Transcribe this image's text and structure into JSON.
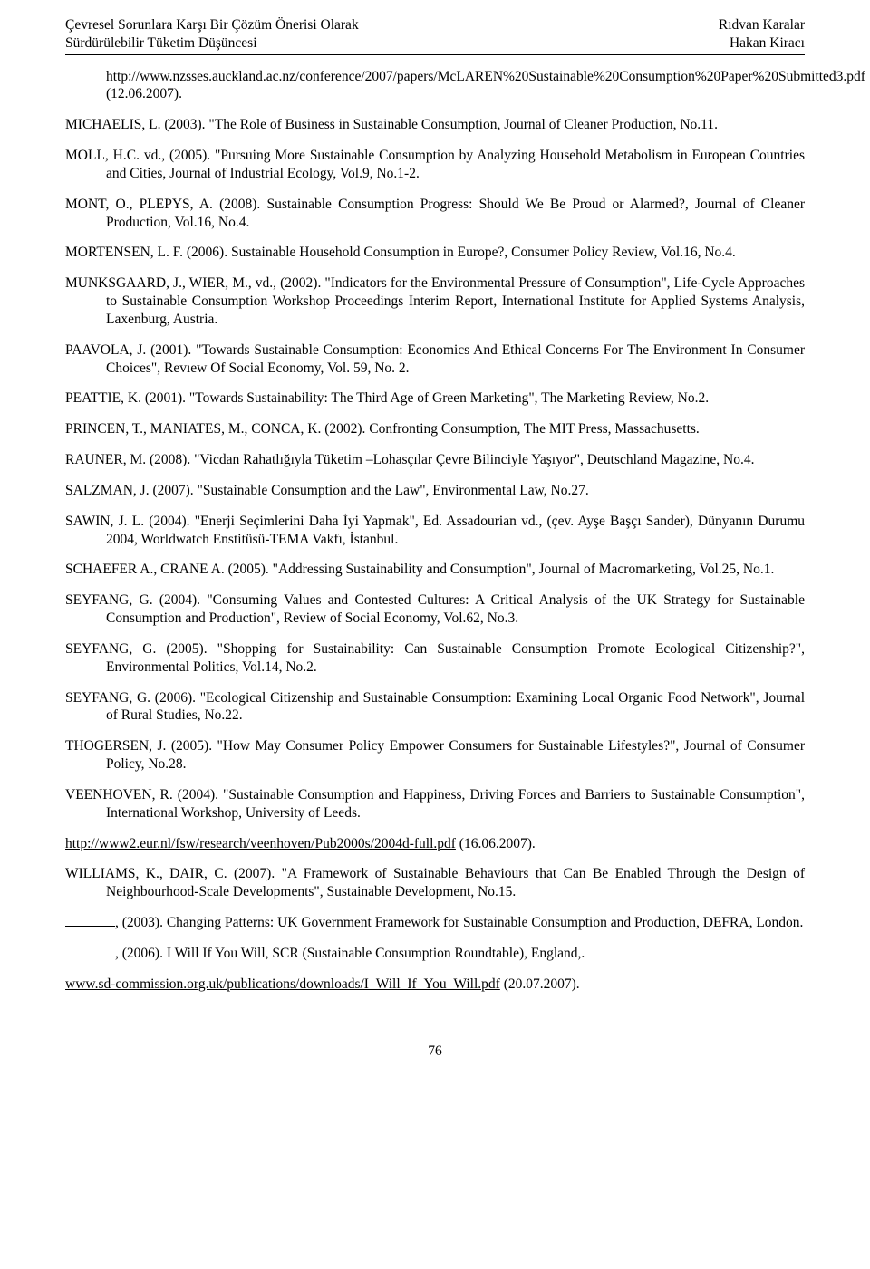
{
  "header": {
    "left": "Çevresel Sorunlara Karşı Bir Çözüm Önerisi Olarak\nSürdürülebilir Tüketim Düşüncesi",
    "right": "Rıdvan Karalar\nHakan Kiracı"
  },
  "refs": [
    {
      "type": "continue",
      "pre_link": "",
      "link": "http://www.nzsses.auckland.ac.nz/conference/2007/papers/McLAREN%20Sustainable%20Consumption%20Paper%20Submitted3.pdf",
      "post_link": " (12.06.2007)."
    },
    {
      "type": "ref",
      "text": "MICHAELIS, L. (2003). \"The Role of Business in Sustainable Consumption, Journal of Cleaner Production, No.11."
    },
    {
      "type": "ref",
      "text": "MOLL, H.C. vd., (2005). \"Pursuing More Sustainable Consumption by Analyzing Household Metabolism in European Countries and Cities, Journal of Industrial Ecology, Vol.9, No.1-2."
    },
    {
      "type": "ref",
      "text": "MONT, O., PLEPYS, A. (2008). Sustainable Consumption Progress: Should We Be Proud or Alarmed?, Journal of Cleaner Production, Vol.16, No.4."
    },
    {
      "type": "ref",
      "text": "MORTENSEN, L. F. (2006). Sustainable Household Consumption in Europe?, Consumer Policy Review, Vol.16, No.4."
    },
    {
      "type": "ref",
      "text": "MUNKSGAARD, J., WIER, M., vd., (2002). \"Indicators for the Environmental Pressure of Consumption\", Life-Cycle Approaches to Sustainable Consumption Workshop Proceedings Interim Report, International Institute for Applied Systems Analysis, Laxenburg, Austria."
    },
    {
      "type": "ref",
      "text": "PAAVOLA, J. (2001). \"Towards Sustainable Consumption: Economics And Ethical Concerns For The Environment In Consumer Choices\", Revıew Of Social Economy, Vol. 59, No. 2."
    },
    {
      "type": "ref",
      "text": "PEATTIE, K. (2001). \"Towards Sustainability: The Third Age of Green Marketing\", The Marketing Review, No.2."
    },
    {
      "type": "ref",
      "text": "PRINCEN, T., MANIATES, M., CONCA, K. (2002). Confronting Consumption, The MIT Press, Massachusetts."
    },
    {
      "type": "ref",
      "text": "RAUNER, M. (2008). \"Vicdan Rahatlığıyla Tüketim –Lohasçılar Çevre Bilinciyle Yaşıyor\", Deutschland Magazine, No.4."
    },
    {
      "type": "ref",
      "text": "SALZMAN, J. (2007). \"Sustainable Consumption and the Law\", Environmental Law, No.27."
    },
    {
      "type": "ref",
      "text": "SAWIN, J. L. (2004). \"Enerji Seçimlerini Daha İyi Yapmak\", Ed. Assadourian vd., (çev. Ayşe Başçı Sander), Dünyanın Durumu 2004, Worldwatch Enstitüsü-TEMA Vakfı, İstanbul."
    },
    {
      "type": "ref",
      "text": "SCHAEFER A., CRANE A. (2005). \"Addressing Sustainability and Consumption\", Journal of Macromarketing, Vol.25, No.1."
    },
    {
      "type": "ref",
      "text": "SEYFANG, G. (2004). \"Consuming Values and Contested Cultures: A Critical Analysis of the UK Strategy for Sustainable Consumption and Production\", Review of Social Economy, Vol.62, No.3."
    },
    {
      "type": "ref",
      "text": "SEYFANG, G. (2005). \"Shopping for Sustainability: Can Sustainable Consumption Promote Ecological Citizenship?\", Environmental Politics, Vol.14, No.2."
    },
    {
      "type": "ref",
      "text": "SEYFANG, G. (2006). \"Ecological Citizenship and Sustainable Consumption: Examining Local Organic Food Network\", Journal of Rural Studies, No.22."
    },
    {
      "type": "ref",
      "text": "THOGERSEN, J. (2005). \"How May Consumer Policy Empower Consumers for Sustainable Lifestyles?\", Journal of Consumer Policy, No.28."
    },
    {
      "type": "ref",
      "text": "VEENHOVEN, R. (2004). \"Sustainable Consumption and Happiness, Driving Forces and Barriers to Sustainable Consumption\", International Workshop, University of Leeds."
    },
    {
      "type": "linkline",
      "link": "http://www2.eur.nl/fsw/research/veenhoven/Pub2000s/2004d-full.pdf",
      "post_link": " (16.06.2007)."
    },
    {
      "type": "ref",
      "text": "WILLIAMS, K., DAIR, C. (2007). \"A Framework of Sustainable Behaviours that Can Be Enabled Through the Design of Neighbourhood-Scale Developments\", Sustainable Development, No.15."
    },
    {
      "type": "blank",
      "text": ", (2003). Changing Patterns: UK Government Framework for Sustainable Consumption and Production, DEFRA, London."
    },
    {
      "type": "blank",
      "text": ", (2006). I Will If You Will, SCR (Sustainable Consumption Roundtable), England,."
    },
    {
      "type": "linkline",
      "link": "www.sd-commission.org.uk/publications/downloads/I_Will_If_You_Will.pdf",
      "post_link": " (20.07.2007)."
    }
  ],
  "page_number": "76"
}
